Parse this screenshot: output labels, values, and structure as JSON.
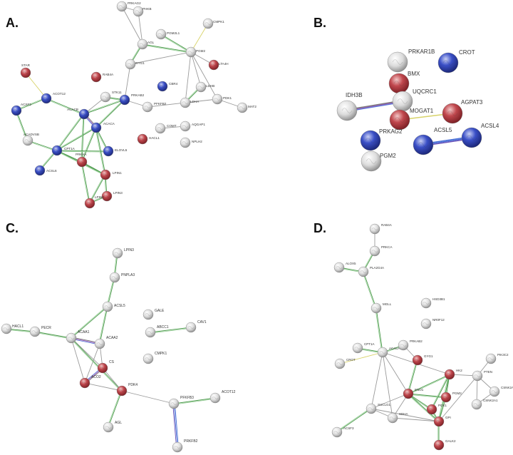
{
  "colors": {
    "red": "#c0474d",
    "blue": "#3a4fc6",
    "gray": "#d9d9d9",
    "edge_green": "#4d9a4d",
    "edge_yellow": "#d8d36a",
    "edge_gray": "#9a9a9a",
    "edge_purple": "#9b59b6",
    "edge_blue": "#4a6fd6"
  },
  "panels": [
    {
      "letter": "A.",
      "nodes": [
        {
          "id": "PRKAG2",
          "label": "PRKAG2",
          "color": "gray"
        },
        {
          "id": "PHKB",
          "label": "PHKB",
          "color": "gray"
        },
        {
          "id": "AGL",
          "label": "AGL",
          "color": "gray"
        },
        {
          "id": "PGM2L1",
          "label": "PGM2L1",
          "color": "gray"
        },
        {
          "id": "CMPK1",
          "label": "CMPK1",
          "color": "gray"
        },
        {
          "id": "PGM2",
          "label": "PGM2",
          "color": "gray"
        },
        {
          "id": "LTA4H",
          "label": "LTA4H",
          "color": "red"
        },
        {
          "id": "GYG1",
          "label": "GYG1",
          "color": "gray"
        },
        {
          "id": "STAR",
          "label": "STAR",
          "color": "red"
        },
        {
          "id": "RAB4A",
          "label": "RAB4A",
          "color": "red"
        },
        {
          "id": "CBR4",
          "label": "CBR4",
          "color": "blue"
        },
        {
          "id": "LDHB",
          "label": "LDHB",
          "color": "gray"
        },
        {
          "id": "ACOT12",
          "label": "ACOT12",
          "color": "blue"
        },
        {
          "id": "STK11",
          "label": "STK11",
          "color": "gray"
        },
        {
          "id": "PRKAB2",
          "label": "PRKAB2",
          "color": "blue"
        },
        {
          "id": "LDHA",
          "label": "LDHA",
          "color": "gray"
        },
        {
          "id": "PDK1",
          "label": "PDK1",
          "color": "gray"
        },
        {
          "id": "MAT2",
          "label": "MAT2",
          "color": "gray"
        },
        {
          "id": "ACSF2",
          "label": "ACSF2",
          "color": "blue"
        },
        {
          "id": "ACACB",
          "label": "ACACB",
          "color": "blue"
        },
        {
          "id": "PFKFB2",
          "label": "PFKFB2",
          "color": "gray"
        },
        {
          "id": "ACACA",
          "label": "ACACA",
          "color": "blue"
        },
        {
          "id": "COMT",
          "label": "COMT",
          "color": "gray"
        },
        {
          "id": "AQGAP1",
          "label": "AQGAP1",
          "color": "gray"
        },
        {
          "id": "HACL1",
          "label": "HACL1",
          "color": "red"
        },
        {
          "id": "ACADVSB",
          "label": "ACADVSB",
          "color": "gray"
        },
        {
          "id": "NPLH2",
          "label": "NPLH2",
          "color": "gray"
        },
        {
          "id": "ELOVL5",
          "label": "ELOVL5",
          "color": "blue"
        },
        {
          "id": "CPT1A",
          "label": "CPT1A",
          "color": "blue"
        },
        {
          "id": "PRKAA",
          "label": "PRKAA",
          "color": "red"
        },
        {
          "id": "ACSL6",
          "label": "ACSL6",
          "color": "blue"
        },
        {
          "id": "LPIN1",
          "label": "LPIN1",
          "color": "red"
        },
        {
          "id": "LPIN3",
          "label": "LPIN3",
          "color": "red"
        },
        {
          "id": "LPIN2",
          "label": "LPIN2",
          "color": "red"
        }
      ],
      "edges": [
        {
          "a": "PRKAG2",
          "b": "AGL",
          "c": "edge_gray"
        },
        {
          "a": "PHKB",
          "b": "AGL",
          "c": "edge_gray"
        },
        {
          "a": "PRKAG2",
          "b": "PHKB",
          "c": "edge_gray"
        },
        {
          "a": "AGL",
          "b": "PGM2",
          "c": "edge_green"
        },
        {
          "a": "PGM2L1",
          "b": "PGM2",
          "c": "edge_green"
        },
        {
          "a": "AGL",
          "b": "GYG1",
          "c": "edge_green"
        },
        {
          "a": "GYG1",
          "b": "PGM2",
          "c": "edge_gray"
        },
        {
          "a": "CMPK1",
          "b": "PGM2",
          "c": "edge_yellow"
        },
        {
          "a": "PGM2",
          "b": "LTA4H",
          "c": "edge_gray"
        },
        {
          "a": "PGM2",
          "b": "LDHB",
          "c": "edge_gray"
        },
        {
          "a": "PGM2",
          "b": "LDHA",
          "c": "edge_gray"
        },
        {
          "a": "PGM2",
          "b": "PDK1",
          "c": "edge_gray"
        },
        {
          "a": "LDHB",
          "b": "LDHA",
          "c": "edge_green"
        },
        {
          "a": "LDHA",
          "b": "PDK1",
          "c": "edge_gray"
        },
        {
          "a": "PDK1",
          "b": "MAT2",
          "c": "edge_gray"
        },
        {
          "a": "GYG1",
          "b": "PRKAB2",
          "c": "edge_gray"
        },
        {
          "a": "PRKAB2",
          "b": "PFKFB2",
          "c": "edge_gray"
        },
        {
          "a": "PFKFB2",
          "b": "LDHA",
          "c": "edge_gray"
        },
        {
          "a": "PRKAB2",
          "b": "ACACB",
          "c": "edge_green"
        },
        {
          "a": "PRKAB2",
          "b": "ACACA",
          "c": "edge_green"
        },
        {
          "a": "STK11",
          "b": "PRKAB2",
          "c": "edge_green"
        },
        {
          "a": "STK11",
          "b": "ACACB",
          "c": "edge_gray"
        },
        {
          "a": "STAR",
          "b": "ACOT12",
          "c": "edge_yellow"
        },
        {
          "a": "ACOT12",
          "b": "ACSF2",
          "c": "edge_green"
        },
        {
          "a": "ACOT12",
          "b": "ACACB",
          "c": "edge_green"
        },
        {
          "a": "ACSF2",
          "b": "ACADVSB",
          "c": "edge_green"
        },
        {
          "a": "ACADVSB",
          "b": "CPT1A",
          "c": "edge_green"
        },
        {
          "a": "ACACB",
          "b": "ACACA",
          "c": "edge_purple"
        },
        {
          "a": "ACACB",
          "b": "CPT1A",
          "c": "edge_green"
        },
        {
          "a": "ACACA",
          "b": "CPT1A",
          "c": "edge_green"
        },
        {
          "a": "ACACA",
          "b": "ELOVL5",
          "c": "edge_green"
        },
        {
          "a": "ACACB",
          "b": "PRKAA",
          "c": "edge_green"
        },
        {
          "a": "ACACA",
          "b": "PRKAA",
          "c": "edge_green"
        },
        {
          "a": "CPT1A",
          "b": "PRKAA",
          "c": "edge_green"
        },
        {
          "a": "CPT1A",
          "b": "ELOVL5",
          "c": "edge_green"
        },
        {
          "a": "CPT1A",
          "b": "ACSL6",
          "c": "edge_green"
        },
        {
          "a": "PRKAA",
          "b": "LPIN1",
          "c": "edge_green"
        },
        {
          "a": "ACACA",
          "b": "LPIN1",
          "c": "edge_green"
        },
        {
          "a": "CPT1A",
          "b": "LPIN1",
          "c": "edge_green"
        },
        {
          "a": "LPIN1",
          "b": "LPIN3",
          "c": "edge_green"
        },
        {
          "a": "LPIN1",
          "b": "LPIN2",
          "c": "edge_green"
        },
        {
          "a": "LPIN3",
          "b": "LPIN2",
          "c": "edge_green"
        },
        {
          "a": "PRKAA",
          "b": "LPIN2",
          "c": "edge_green"
        },
        {
          "a": "COMT",
          "b": "AQGAP1",
          "c": "edge_gray"
        }
      ]
    },
    {
      "letter": "B.",
      "nodes": [
        {
          "id": "PRKAR1B",
          "label": "PRKAR1B",
          "color": "gray"
        },
        {
          "id": "CROT",
          "label": "CROT",
          "color": "blue"
        },
        {
          "id": "BMX",
          "label": "BMX",
          "color": "red"
        },
        {
          "id": "UQCRC1",
          "label": "UQCRC1",
          "color": "gray"
        },
        {
          "id": "IDH3B",
          "label": "IDH3B",
          "color": "gray"
        },
        {
          "id": "MOGAT1",
          "label": "MOGAT1",
          "color": "red"
        },
        {
          "id": "AGPAT3",
          "label": "AGPAT3",
          "color": "red"
        },
        {
          "id": "PRKAG2",
          "label": "PRKAG2",
          "color": "blue"
        },
        {
          "id": "ACSL5",
          "label": "ACSL5",
          "color": "blue"
        },
        {
          "id": "ACSL4",
          "label": "ACSL4",
          "color": "blue"
        },
        {
          "id": "PGM2",
          "label": "PGM2",
          "color": "gray"
        }
      ],
      "edges": [
        {
          "a": "IDH3B",
          "b": "UQCRC1",
          "c": "edge_purple"
        },
        {
          "a": "MOGAT1",
          "b": "AGPAT3",
          "c": "edge_yellow"
        },
        {
          "a": "ACSL5",
          "b": "ACSL4",
          "c": "edge_blue"
        }
      ]
    },
    {
      "letter": "C.",
      "nodes": [
        {
          "id": "LPIN3",
          "label": "LPIN3",
          "color": "gray"
        },
        {
          "id": "PNPLA3",
          "label": "PNPLA3",
          "color": "gray"
        },
        {
          "id": "ACSL5",
          "label": "ACSL5",
          "color": "gray"
        },
        {
          "id": "GALE",
          "label": "GALE",
          "color": "gray"
        },
        {
          "id": "ABCC1",
          "label": "ABCC1",
          "color": "gray"
        },
        {
          "id": "CAV1",
          "label": "CAV1",
          "color": "gray"
        },
        {
          "id": "HACL1",
          "label": "HACL1",
          "color": "gray"
        },
        {
          "id": "PECR",
          "label": "PECR",
          "color": "gray"
        },
        {
          "id": "ACAA1",
          "label": "ACAA1",
          "color": "gray"
        },
        {
          "id": "ACAA2",
          "label": "ACAA2",
          "color": "gray"
        },
        {
          "id": "CS",
          "label": "CS",
          "color": "red"
        },
        {
          "id": "CMPK1",
          "label": "CMPK1",
          "color": "gray"
        },
        {
          "id": "ACO2",
          "label": "ACO2",
          "color": "red"
        },
        {
          "id": "PDK4",
          "label": "PDK4",
          "color": "red"
        },
        {
          "id": "ACOT12",
          "label": "ACOT12",
          "color": "gray"
        },
        {
          "id": "PFKFB3",
          "label": "PFKFB3",
          "color": "gray"
        },
        {
          "id": "AGL",
          "label": "AGL",
          "color": "gray"
        },
        {
          "id": "PRKFB2",
          "label": "PRKFB2",
          "color": "gray"
        }
      ],
      "edges": [
        {
          "a": "LPIN3",
          "b": "PNPLA3",
          "c": "edge_green"
        },
        {
          "a": "PNPLA3",
          "b": "ACSL5",
          "c": "edge_green"
        },
        {
          "a": "ACSL5",
          "b": "ACAA1",
          "c": "edge_green"
        },
        {
          "a": "ACSL5",
          "b": "ACAA2",
          "c": "edge_green"
        },
        {
          "a": "HACL1",
          "b": "PECR",
          "c": "edge_green"
        },
        {
          "a": "PECR",
          "b": "ACAA1",
          "c": "edge_green"
        },
        {
          "a": "ACAA1",
          "b": "ACAA2",
          "c": "edge_purple"
        },
        {
          "a": "ACAA1",
          "b": "CS",
          "c": "edge_gray"
        },
        {
          "a": "ACAA2",
          "b": "CS",
          "c": "edge_gray"
        },
        {
          "a": "ACAA1",
          "b": "ACO2",
          "c": "edge_gray"
        },
        {
          "a": "ACAA2",
          "b": "ACO2",
          "c": "edge_gray"
        },
        {
          "a": "CS",
          "b": "ACO2",
          "c": "edge_purple"
        },
        {
          "a": "ACAA1",
          "b": "PDK4",
          "c": "edge_green"
        },
        {
          "a": "CS",
          "b": "PDK4",
          "c": "edge_gray"
        },
        {
          "a": "ACO2",
          "b": "PDK4",
          "c": "edge_gray"
        },
        {
          "a": "PDK4",
          "b": "AGL",
          "c": "edge_green"
        },
        {
          "a": "PDK4",
          "b": "PFKFB3",
          "c": "edge_gray"
        },
        {
          "a": "PFKFB3",
          "b": "ACOT12",
          "c": "edge_green"
        },
        {
          "a": "PFKFB3",
          "b": "PRKFB2",
          "c": "edge_blue"
        },
        {
          "a": "ABCC1",
          "b": "CAV1",
          "c": "edge_green"
        }
      ]
    },
    {
      "letter": "D.",
      "nodes": [
        {
          "id": "RAB4A",
          "label": "RAB4A",
          "color": "gray"
        },
        {
          "id": "PRKCA",
          "label": "PRKCA",
          "color": "gray"
        },
        {
          "id": "ALOX5",
          "label": "ALOX5",
          "color": "gray"
        },
        {
          "id": "PLA2G4A",
          "label": "PLA2G4A",
          "color": "gray"
        },
        {
          "id": "HSD3B1",
          "label": "HSD3B1",
          "color": "gray"
        },
        {
          "id": "MGLL",
          "label": "MGLL",
          "color": "gray"
        },
        {
          "id": "NR0F12",
          "label": "NR0F12",
          "color": "gray"
        },
        {
          "id": "CPT1A",
          "label": "CPT1A",
          "color": "gray"
        },
        {
          "id": "ACACA",
          "label": "ACACA",
          "color": "gray"
        },
        {
          "id": "PRKAB2",
          "label": "PRKAB2",
          "color": "gray"
        },
        {
          "id": "GYG1",
          "label": "GYG1",
          "color": "red"
        },
        {
          "id": "PIK3C2",
          "label": "PIK3C2",
          "color": "gray"
        },
        {
          "id": "CROT",
          "label": "CROT",
          "color": "gray"
        },
        {
          "id": "HK2",
          "label": "HK2",
          "color": "red"
        },
        {
          "id": "PTEN",
          "label": "PTEN",
          "color": "gray"
        },
        {
          "id": "CSNK2A2",
          "label": "CSNK2A2",
          "color": "gray"
        },
        {
          "id": "CSNK2A1",
          "label": "CSNK2A1",
          "color": "gray"
        },
        {
          "id": "ENO1",
          "label": "ENO1",
          "color": "red"
        },
        {
          "id": "PGM2",
          "label": "PGM2",
          "color": "red"
        },
        {
          "id": "SUCLG1",
          "label": "SUCLG1",
          "color": "gray"
        },
        {
          "id": "PGK1",
          "label": "PGK1",
          "color": "red"
        },
        {
          "id": "SDHA",
          "label": "SDHA",
          "color": "gray"
        },
        {
          "id": "GPI",
          "label": "GPI",
          "color": "red"
        },
        {
          "id": "ACSF3",
          "label": "ACSF3",
          "color": "gray"
        },
        {
          "id": "GALK2",
          "label": "GALK2",
          "color": "red"
        }
      ],
      "edges": [
        {
          "a": "RAB4A",
          "b": "PRKCA",
          "c": "edge_gray"
        },
        {
          "a": "PRKCA",
          "b": "PLA2G4A",
          "c": "edge_green"
        },
        {
          "a": "ALOX5",
          "b": "PLA2G4A",
          "c": "edge_green"
        },
        {
          "a": "PLA2G4A",
          "b": "MGLL",
          "c": "edge_green"
        },
        {
          "a": "MGLL",
          "b": "ACACA",
          "c": "edge_green"
        },
        {
          "a": "CPT1A",
          "b": "ACACA",
          "c": "edge_green"
        },
        {
          "a": "CROT",
          "b": "ACACA",
          "c": "edge_yellow"
        },
        {
          "a": "ACACA",
          "b": "PRKAB2",
          "c": "edge_green"
        },
        {
          "a": "PRKAB2",
          "b": "GYG1",
          "c": "edge_gray"
        },
        {
          "a": "ACACA",
          "b": "ENO1",
          "c": "edge_gray"
        },
        {
          "a": "ACACA",
          "b": "SUCLG1",
          "c": "edge_gray"
        },
        {
          "a": "ACACA",
          "b": "SDHA",
          "c": "edge_gray"
        },
        {
          "a": "ACACA",
          "b": "HK2",
          "c": "edge_gray"
        },
        {
          "a": "GYG1",
          "b": "ENO1",
          "c": "edge_green"
        },
        {
          "a": "ENO1",
          "b": "HK2",
          "c": "edge_green"
        },
        {
          "a": "ENO1",
          "b": "PGM2",
          "c": "edge_green"
        },
        {
          "a": "ENO1",
          "b": "PGK1",
          "c": "edge_green"
        },
        {
          "a": "ENO1",
          "b": "GPI",
          "c": "edge_green"
        },
        {
          "a": "ENO1",
          "b": "SUCLG1",
          "c": "edge_gray"
        },
        {
          "a": "ENO1",
          "b": "SDHA",
          "c": "edge_gray"
        },
        {
          "a": "HK2",
          "b": "PGM2",
          "c": "edge_green"
        },
        {
          "a": "HK2",
          "b": "PGK1",
          "c": "edge_green"
        },
        {
          "a": "HK2",
          "b": "GPI",
          "c": "edge_green"
        },
        {
          "a": "HK2",
          "b": "PTEN",
          "c": "edge_gray"
        },
        {
          "a": "PGM2",
          "b": "GPI",
          "c": "edge_green"
        },
        {
          "a": "PGK1",
          "b": "GPI",
          "c": "edge_green"
        },
        {
          "a": "GPI",
          "b": "GALK2",
          "c": "edge_green"
        },
        {
          "a": "PTEN",
          "b": "PIK3C2",
          "c": "edge_gray"
        },
        {
          "a": "PTEN",
          "b": "CSNK2A2",
          "c": "edge_gray"
        },
        {
          "a": "PTEN",
          "b": "CSNK2A1",
          "c": "edge_gray"
        },
        {
          "a": "CSNK2A2",
          "b": "CSNK2A1",
          "c": "edge_gray"
        },
        {
          "a": "PTEN",
          "b": "GPI",
          "c": "edge_gray"
        },
        {
          "a": "SUCLG1",
          "b": "SDHA",
          "c": "edge_gray"
        },
        {
          "a": "SUCLG1",
          "b": "ACSF3",
          "c": "edge_green"
        },
        {
          "a": "SUCLG1",
          "b": "GPI",
          "c": "edge_gray"
        },
        {
          "a": "SDHA",
          "b": "GPI",
          "c": "edge_gray"
        }
      ]
    }
  ]
}
